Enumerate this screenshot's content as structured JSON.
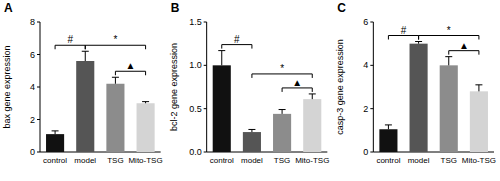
{
  "chart_data": [
    {
      "type": "bar",
      "title": "A",
      "ylabel": "bax gene expression",
      "categories": [
        "control",
        "model",
        "TSG",
        "Mito-TSG"
      ],
      "values": [
        1.1,
        5.6,
        4.2,
        3.0
      ],
      "errors": [
        0.2,
        0.6,
        0.4,
        0.1
      ],
      "colors": [
        "#111111",
        "#555555",
        "#8c8c8c",
        "#d4d4d4"
      ],
      "ylim": [
        0,
        8
      ],
      "yticks": [
        0,
        2,
        4,
        6,
        8
      ],
      "grid": false,
      "annotations": [
        {
          "text": "#",
          "between": [
            "control",
            "model"
          ]
        },
        {
          "text": "▲",
          "between": [
            "TSG",
            "Mito-TSG"
          ]
        },
        {
          "text": "*",
          "between": [
            "model",
            "Mito-TSG"
          ]
        }
      ]
    },
    {
      "type": "bar",
      "title": "B",
      "ylabel": "bcl-2 gene expression",
      "categories": [
        "control",
        "model",
        "TSG",
        "Mito-TSG"
      ],
      "values": [
        1.0,
        0.23,
        0.44,
        0.61
      ],
      "errors": [
        0.17,
        0.03,
        0.05,
        0.06
      ],
      "colors": [
        "#111111",
        "#555555",
        "#8c8c8c",
        "#d4d4d4"
      ],
      "ylim": [
        0,
        1.5
      ],
      "yticks": [
        {
          "value": 0,
          "label": "0.0"
        },
        0.5,
        {
          "value": 1,
          "label": "1.0"
        },
        1.5
      ],
      "grid": false,
      "annotations": [
        {
          "text": "#",
          "between": [
            "control",
            "model"
          ]
        },
        {
          "text": "▲",
          "between": [
            "TSG",
            "Mito-TSG"
          ]
        },
        {
          "text": "*",
          "between": [
            "model",
            "Mito-TSG"
          ]
        }
      ]
    },
    {
      "type": "bar",
      "title": "C",
      "ylabel": "casp-3 gene expression",
      "categories": [
        "control",
        "model",
        "TSG",
        "Mito-TSG"
      ],
      "values": [
        1.05,
        5.0,
        4.0,
        2.8
      ],
      "errors": [
        0.2,
        0.1,
        0.4,
        0.3
      ],
      "colors": [
        "#111111",
        "#555555",
        "#8c8c8c",
        "#d4d4d4"
      ],
      "ylim": [
        0,
        6
      ],
      "yticks": [
        0,
        2,
        4,
        6
      ],
      "grid": false,
      "annotations": [
        {
          "text": "#",
          "between": [
            "control",
            "model"
          ]
        },
        {
          "text": "▲",
          "between": [
            "TSG",
            "Mito-TSG"
          ]
        },
        {
          "text": "*",
          "between": [
            "model",
            "Mito-TSG"
          ]
        }
      ]
    }
  ]
}
